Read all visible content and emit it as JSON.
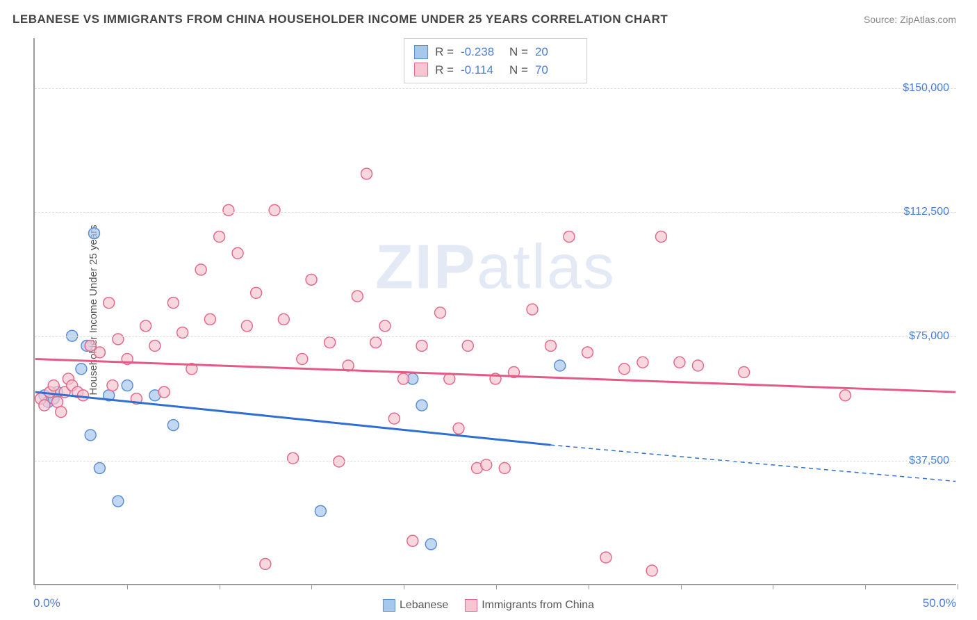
{
  "title": "LEBANESE VS IMMIGRANTS FROM CHINA HOUSEHOLDER INCOME UNDER 25 YEARS CORRELATION CHART",
  "source": "Source: ZipAtlas.com",
  "y_axis_label": "Householder Income Under 25 years",
  "x_axis": {
    "min_label": "0.0%",
    "max_label": "50.0%",
    "min": 0,
    "max": 50,
    "ticks": [
      0,
      5,
      10,
      15,
      20,
      25,
      30,
      35,
      40,
      45,
      50
    ]
  },
  "y_axis": {
    "min": 0,
    "max": 165000,
    "gridlines": [
      {
        "value": 37500,
        "label": "$37,500"
      },
      {
        "value": 75000,
        "label": "$75,000"
      },
      {
        "value": 112500,
        "label": "$112,500"
      },
      {
        "value": 150000,
        "label": "$150,000"
      }
    ]
  },
  "watermark": {
    "part1": "ZIP",
    "part2": "atlas"
  },
  "series": [
    {
      "id": "lebanese",
      "legend_label": "Lebanese",
      "fill": "#a8c7ec",
      "stroke": "#5a8fd6",
      "line_color": "#2e6fd0",
      "r_label": "R =",
      "r_value": "-0.238",
      "n_label": "N =",
      "n_value": "20",
      "trend": {
        "x1": 0,
        "y1": 58000,
        "x2_solid": 28,
        "y2_solid": 42000,
        "x2_dash": 50,
        "y2_dash": 31000
      },
      "points": [
        {
          "x": 0.5,
          "y": 57000
        },
        {
          "x": 0.7,
          "y": 55000
        },
        {
          "x": 1.0,
          "y": 56000
        },
        {
          "x": 1.2,
          "y": 58000
        },
        {
          "x": 2.0,
          "y": 75000
        },
        {
          "x": 2.5,
          "y": 65000
        },
        {
          "x": 3.0,
          "y": 45000
        },
        {
          "x": 3.2,
          "y": 106000
        },
        {
          "x": 3.5,
          "y": 35000
        },
        {
          "x": 4.0,
          "y": 57000
        },
        {
          "x": 4.5,
          "y": 25000
        },
        {
          "x": 5.0,
          "y": 60000
        },
        {
          "x": 6.5,
          "y": 57000
        },
        {
          "x": 7.5,
          "y": 48000
        },
        {
          "x": 15.5,
          "y": 22000
        },
        {
          "x": 20.5,
          "y": 62000
        },
        {
          "x": 21.0,
          "y": 54000
        },
        {
          "x": 21.5,
          "y": 12000
        },
        {
          "x": 28.5,
          "y": 66000
        },
        {
          "x": 2.8,
          "y": 72000
        }
      ]
    },
    {
      "id": "china",
      "legend_label": "Immigrants from China",
      "fill": "#f7c6d2",
      "stroke": "#e26a8b",
      "line_color": "#e55a85",
      "r_label": "R =",
      "r_value": "-0.114",
      "n_label": "N =",
      "n_value": "70",
      "trend": {
        "x1": 0,
        "y1": 68000,
        "x2_solid": 50,
        "y2_solid": 58000,
        "x2_dash": 50,
        "y2_dash": 58000
      },
      "points": [
        {
          "x": 0.3,
          "y": 56000
        },
        {
          "x": 0.5,
          "y": 54000
        },
        {
          "x": 0.8,
          "y": 58000
        },
        {
          "x": 1.0,
          "y": 60000
        },
        {
          "x": 1.2,
          "y": 55000
        },
        {
          "x": 1.4,
          "y": 52000
        },
        {
          "x": 1.6,
          "y": 58000
        },
        {
          "x": 1.8,
          "y": 62000
        },
        {
          "x": 2.0,
          "y": 60000
        },
        {
          "x": 2.3,
          "y": 58000
        },
        {
          "x": 2.6,
          "y": 57000
        },
        {
          "x": 3.0,
          "y": 72000
        },
        {
          "x": 3.5,
          "y": 70000
        },
        {
          "x": 4.0,
          "y": 85000
        },
        {
          "x": 4.2,
          "y": 60000
        },
        {
          "x": 4.5,
          "y": 74000
        },
        {
          "x": 5.0,
          "y": 68000
        },
        {
          "x": 5.5,
          "y": 56000
        },
        {
          "x": 6.0,
          "y": 78000
        },
        {
          "x": 6.5,
          "y": 72000
        },
        {
          "x": 7.0,
          "y": 58000
        },
        {
          "x": 7.5,
          "y": 85000
        },
        {
          "x": 8.0,
          "y": 76000
        },
        {
          "x": 8.5,
          "y": 65000
        },
        {
          "x": 9.0,
          "y": 95000
        },
        {
          "x": 9.5,
          "y": 80000
        },
        {
          "x": 10.0,
          "y": 105000
        },
        {
          "x": 10.5,
          "y": 113000
        },
        {
          "x": 11.0,
          "y": 100000
        },
        {
          "x": 11.5,
          "y": 78000
        },
        {
          "x": 12.0,
          "y": 88000
        },
        {
          "x": 12.5,
          "y": 6000
        },
        {
          "x": 13.0,
          "y": 113000
        },
        {
          "x": 13.5,
          "y": 80000
        },
        {
          "x": 14.0,
          "y": 38000
        },
        {
          "x": 14.5,
          "y": 68000
        },
        {
          "x": 15.0,
          "y": 92000
        },
        {
          "x": 16.0,
          "y": 73000
        },
        {
          "x": 16.5,
          "y": 37000
        },
        {
          "x": 17.0,
          "y": 66000
        },
        {
          "x": 17.5,
          "y": 87000
        },
        {
          "x": 18.0,
          "y": 124000
        },
        {
          "x": 18.5,
          "y": 73000
        },
        {
          "x": 19.0,
          "y": 78000
        },
        {
          "x": 19.5,
          "y": 50000
        },
        {
          "x": 20.0,
          "y": 62000
        },
        {
          "x": 21.0,
          "y": 72000
        },
        {
          "x": 22.0,
          "y": 82000
        },
        {
          "x": 22.5,
          "y": 62000
        },
        {
          "x": 23.0,
          "y": 47000
        },
        {
          "x": 23.5,
          "y": 72000
        },
        {
          "x": 24.0,
          "y": 35000
        },
        {
          "x": 24.5,
          "y": 36000
        },
        {
          "x": 25.0,
          "y": 62000
        },
        {
          "x": 25.5,
          "y": 35000
        },
        {
          "x": 26.0,
          "y": 64000
        },
        {
          "x": 27.0,
          "y": 83000
        },
        {
          "x": 28.0,
          "y": 72000
        },
        {
          "x": 29.0,
          "y": 105000
        },
        {
          "x": 30.0,
          "y": 70000
        },
        {
          "x": 31.0,
          "y": 8000
        },
        {
          "x": 32.0,
          "y": 65000
        },
        {
          "x": 33.0,
          "y": 67000
        },
        {
          "x": 33.5,
          "y": 4000
        },
        {
          "x": 34.0,
          "y": 105000
        },
        {
          "x": 35.0,
          "y": 67000
        },
        {
          "x": 36.0,
          "y": 66000
        },
        {
          "x": 38.5,
          "y": 64000
        },
        {
          "x": 44.0,
          "y": 57000
        },
        {
          "x": 20.5,
          "y": 13000
        }
      ]
    }
  ],
  "colors": {
    "title": "#444444",
    "axis": "#999999",
    "grid": "#dddddd",
    "tick_label": "#4a7fd8",
    "background": "#ffffff"
  },
  "marker_radius": 8
}
